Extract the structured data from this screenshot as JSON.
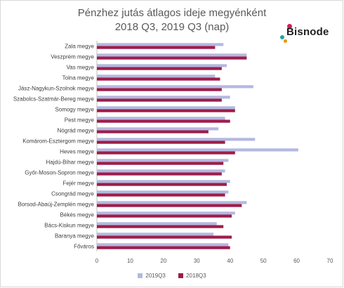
{
  "chart_data": {
    "type": "bar",
    "orientation": "horizontal",
    "title_line1": "Pénzhez jutás átlagos ideje megyénként",
    "title_line2": "2018 Q3, 2019 Q3 (nap)",
    "categories": [
      "Zala megye",
      "Veszprém megye",
      "Vas megye",
      "Tolna megye",
      "Jász-Nagykun-Szolnok megye",
      "Szabolcs-Szatmár-Bereg megye",
      "Somogy megye",
      "Pest megye",
      "Nógrád megye",
      "Komárom-Esztergom megye",
      "Heves megye",
      "Hajdú-Bihar megye",
      "Győr-Moson-Sopron megye",
      "Fejér megye",
      "Csongrád megye",
      "Borsod-Abaúj-Zemplén megye",
      "Békés megye",
      "Bács-Kiskun megye",
      "Baranya megye",
      "Főváros"
    ],
    "series": [
      {
        "name": "2019Q3",
        "color": "#b4b8df",
        "values": [
          38,
          45,
          39,
          35.5,
          47,
          40,
          41.5,
          38.5,
          36.5,
          47.5,
          60.5,
          39.5,
          38.5,
          40,
          39.5,
          45,
          41.5,
          36,
          35,
          39.5
        ]
      },
      {
        "name": "2018Q3",
        "color": "#9e1d49",
        "values": [
          35.5,
          45,
          37.5,
          37,
          37.5,
          37.5,
          41.5,
          40,
          33.5,
          38.5,
          41.5,
          38,
          37.5,
          39,
          38.5,
          43.5,
          40.5,
          38,
          40.5,
          40
        ]
      }
    ],
    "xlim": [
      0,
      70
    ],
    "xticks": [
      0,
      10,
      20,
      30,
      40,
      50,
      60,
      70
    ],
    "grid": false,
    "legend_position": "bottom"
  },
  "logo": {
    "text": "Bisnode"
  }
}
